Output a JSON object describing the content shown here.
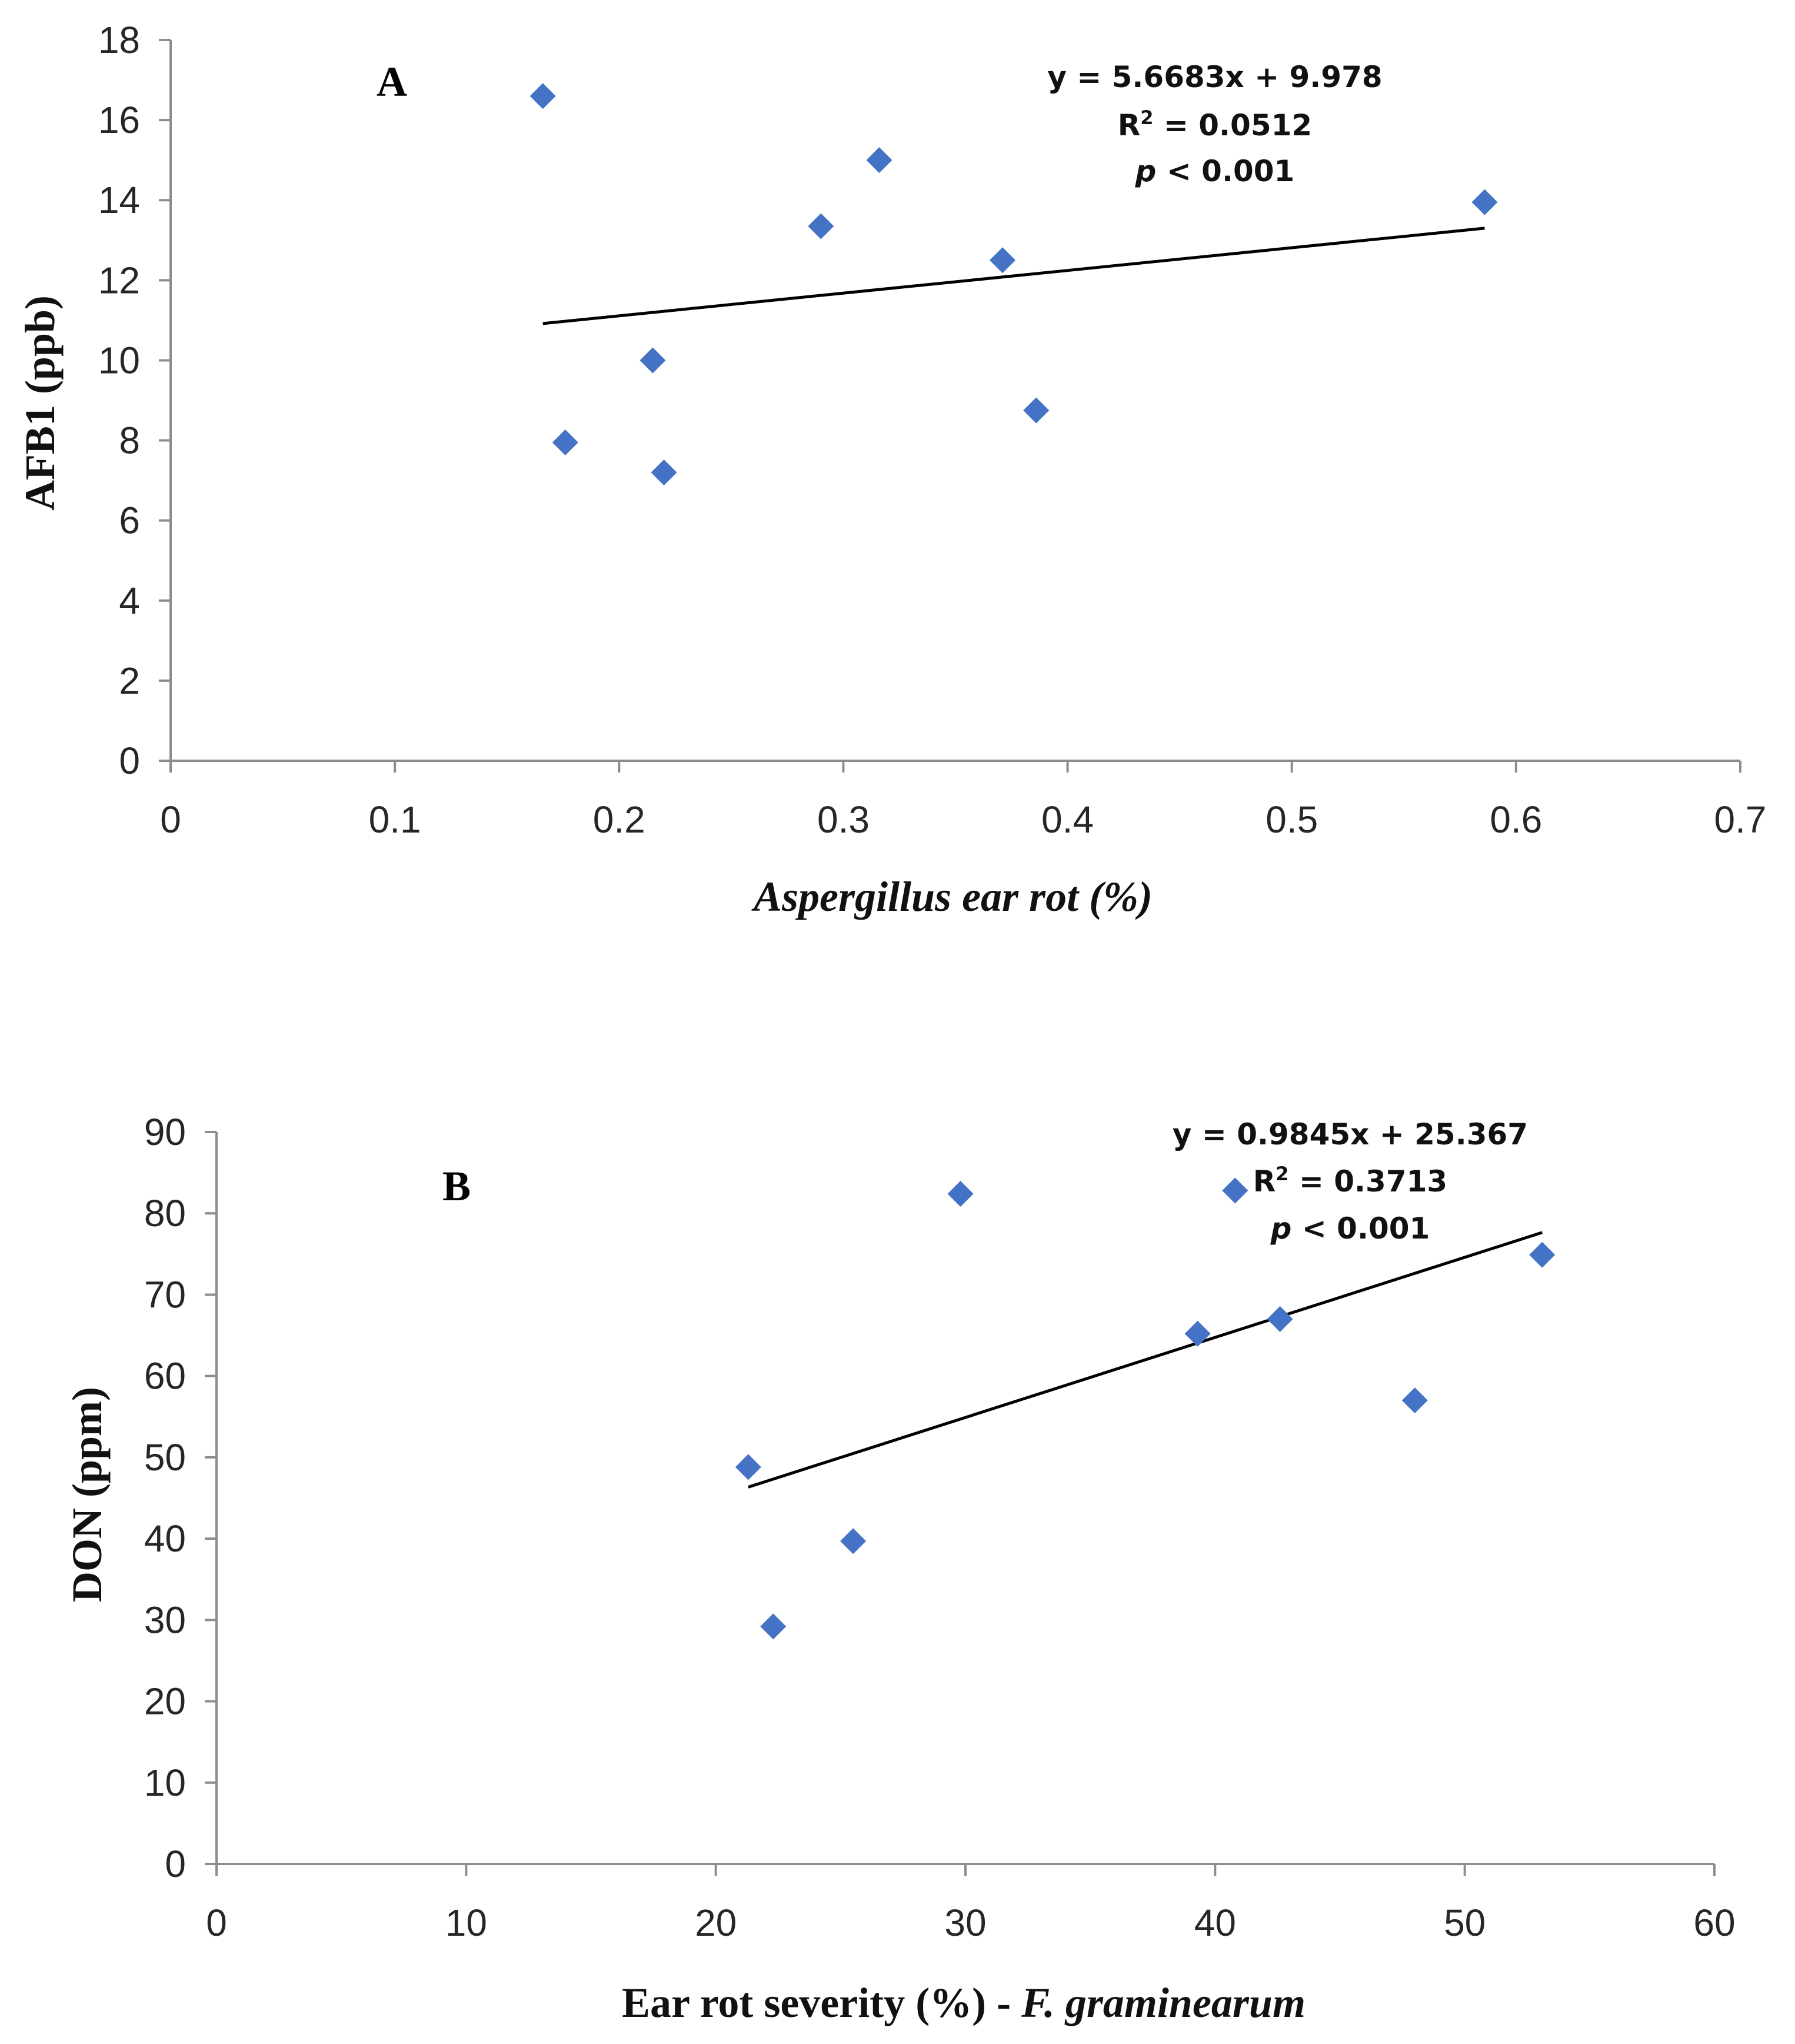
{
  "chart_data": [
    {
      "panel": "A",
      "type": "scatter",
      "xlabel": "Aspergillus ear rot (%)",
      "ylabel": "AFB1 (ppb)",
      "xlim": [
        0,
        0.7
      ],
      "ylim": [
        0,
        18
      ],
      "xticks": [
        "0",
        "0.1",
        "0.2",
        "0.3",
        "0.4",
        "0.5",
        "0.6",
        "0.7"
      ],
      "yticks": [
        "0",
        "2",
        "4",
        "6",
        "8",
        "10",
        "12",
        "14",
        "16",
        "18"
      ],
      "grid": false,
      "marker_color": "#4472C4",
      "points": [
        {
          "x": 0.166,
          "y": 16.6
        },
        {
          "x": 0.176,
          "y": 7.95
        },
        {
          "x": 0.215,
          "y": 10.0
        },
        {
          "x": 0.22,
          "y": 7.2
        },
        {
          "x": 0.29,
          "y": 13.35
        },
        {
          "x": 0.316,
          "y": 15.0
        },
        {
          "x": 0.371,
          "y": 12.5
        },
        {
          "x": 0.386,
          "y": 8.75
        },
        {
          "x": 0.586,
          "y": 13.95
        }
      ],
      "trendline": {
        "slope": 5.6683,
        "intercept": 9.978,
        "x_start": 0.166,
        "x_end": 0.586
      },
      "equation": "y = 5.6683x + 9.978",
      "r2_prefix": "R",
      "r2_sup": "2",
      "r2_value": " = 0.0512",
      "p_symbol": "p",
      "p_value": " < 0.001"
    },
    {
      "panel": "B",
      "type": "scatter",
      "xlabel_main": "Ear rot severity (%) - ",
      "xlabel_species": "F. graminearum",
      "ylabel": "DON (ppm)",
      "xlim": [
        0,
        60
      ],
      "ylim": [
        0,
        90
      ],
      "xticks": [
        "0",
        "10",
        "20",
        "30",
        "40",
        "50",
        "60"
      ],
      "yticks": [
        "0",
        "10",
        "20",
        "30",
        "40",
        "50",
        "60",
        "70",
        "80",
        "90"
      ],
      "grid": false,
      "marker_color": "#4472C4",
      "points": [
        {
          "x": 21.3,
          "y": 48.8
        },
        {
          "x": 22.3,
          "y": 29.2
        },
        {
          "x": 25.5,
          "y": 39.7
        },
        {
          "x": 29.8,
          "y": 82.4
        },
        {
          "x": 39.3,
          "y": 65.2
        },
        {
          "x": 40.8,
          "y": 82.8
        },
        {
          "x": 42.6,
          "y": 67.0
        },
        {
          "x": 48.0,
          "y": 57.0
        },
        {
          "x": 53.1,
          "y": 74.9
        }
      ],
      "trendline": {
        "slope": 0.9845,
        "intercept": 25.367,
        "x_start": 21.3,
        "x_end": 53.1
      },
      "equation": "y = 0.9845x + 25.367",
      "r2_prefix": "R",
      "r2_sup": "2",
      "r2_value": " = 0.3713",
      "p_symbol": "p",
      "p_value": " < 0.001"
    }
  ]
}
